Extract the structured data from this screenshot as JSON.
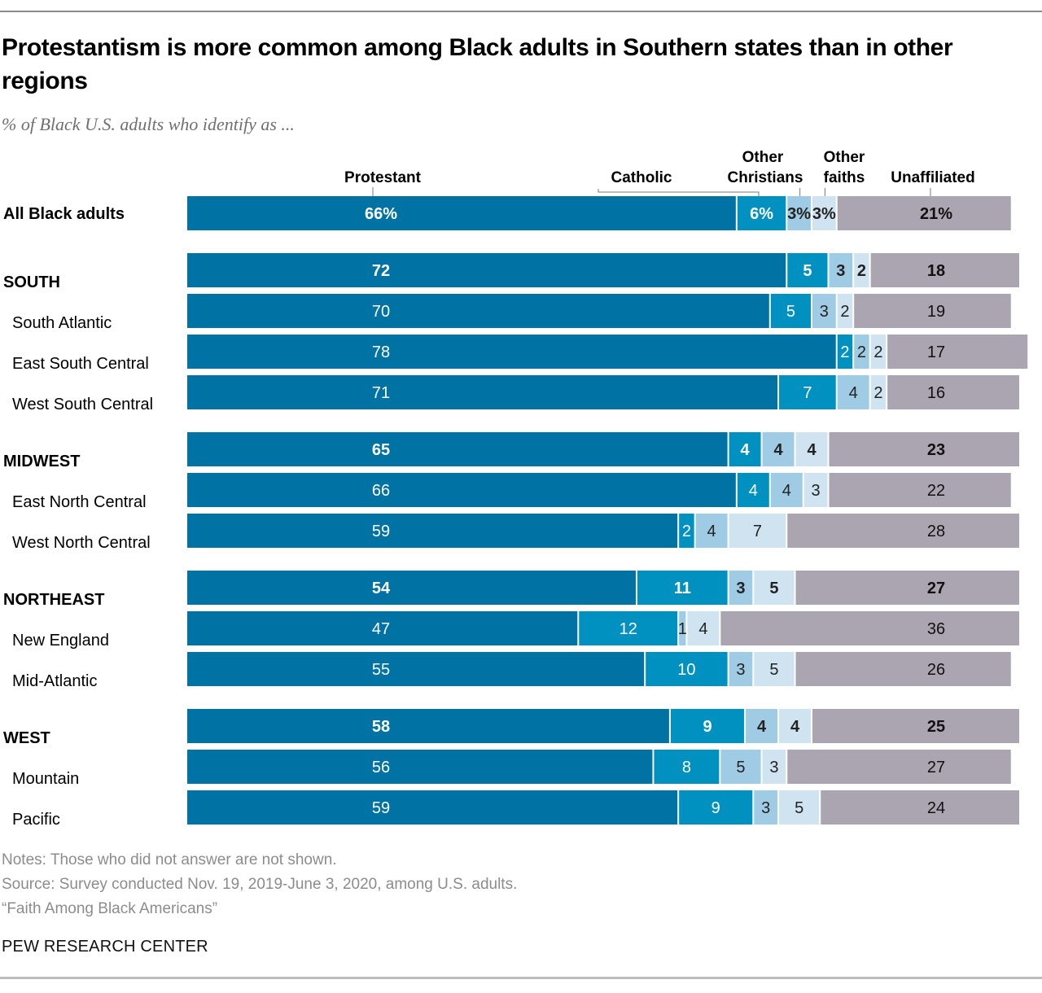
{
  "header": {
    "title": "Protestantism is more common among Black adults in Southern states than in other regions",
    "subtitle": "% of Black U.S. adults who identify as ..."
  },
  "colors": {
    "protestant": "#0072a3",
    "catholic": "#0091c0",
    "other_christians": "#a0cbe4",
    "other_faiths": "#cfe3f1",
    "unaffiliated": "#aba5b1"
  },
  "footer": {
    "notes": "Notes: Those who did not answer are not shown.",
    "source": "Source: Survey conducted Nov. 19, 2019-June 3, 2020, among U.S. adults.",
    "report": "“Faith Among Black Americans”",
    "brand": "PEW RESEARCH CENTER"
  },
  "chart_data": {
    "type": "bar",
    "orientation": "horizontal",
    "stacked": true,
    "title": "Protestantism is more common among Black adults in Southern states than in other regions",
    "subtitle": "% of Black U.S. adults who identify as ...",
    "units": "%",
    "xlim": [
      0,
      100
    ],
    "legend_placement": "top",
    "series": [
      {
        "key": "protestant",
        "name": "Protestant"
      },
      {
        "key": "catholic",
        "name": "Catholic"
      },
      {
        "key": "other_christians",
        "name": "Other Christians"
      },
      {
        "key": "other_faiths",
        "name": "Other faiths"
      },
      {
        "key": "unaffiliated",
        "name": "Unaffiliated"
      }
    ],
    "rows": [
      {
        "label": "All Black adults",
        "kind": "total",
        "values": [
          66,
          6,
          3,
          3,
          21
        ],
        "show_percent": true
      },
      {
        "label": "SOUTH",
        "kind": "region",
        "values": [
          72,
          5,
          3,
          2,
          18
        ]
      },
      {
        "label": "South Atlantic",
        "kind": "division",
        "values": [
          70,
          5,
          3,
          2,
          19
        ]
      },
      {
        "label": "East South Central",
        "kind": "division",
        "values": [
          78,
          2,
          2,
          2,
          17
        ]
      },
      {
        "label": "West South Central",
        "kind": "division",
        "values": [
          71,
          7,
          4,
          2,
          16
        ]
      },
      {
        "label": "MIDWEST",
        "kind": "region",
        "values": [
          65,
          4,
          4,
          4,
          23
        ]
      },
      {
        "label": "East North Central",
        "kind": "division",
        "values": [
          66,
          4,
          4,
          3,
          22
        ]
      },
      {
        "label": "West North Central",
        "kind": "division",
        "values": [
          59,
          2,
          4,
          7,
          28
        ]
      },
      {
        "label": "NORTHEAST",
        "kind": "region",
        "values": [
          54,
          11,
          3,
          5,
          27
        ]
      },
      {
        "label": "New England",
        "kind": "division",
        "values": [
          47,
          12,
          1,
          4,
          36
        ]
      },
      {
        "label": "Mid-Atlantic",
        "kind": "division",
        "values": [
          55,
          10,
          3,
          5,
          26
        ]
      },
      {
        "label": "WEST",
        "kind": "region",
        "values": [
          58,
          9,
          4,
          4,
          25
        ]
      },
      {
        "label": "Mountain",
        "kind": "division",
        "values": [
          56,
          8,
          5,
          3,
          27
        ]
      },
      {
        "label": "Pacific",
        "kind": "division",
        "values": [
          59,
          9,
          3,
          5,
          24
        ]
      }
    ]
  }
}
